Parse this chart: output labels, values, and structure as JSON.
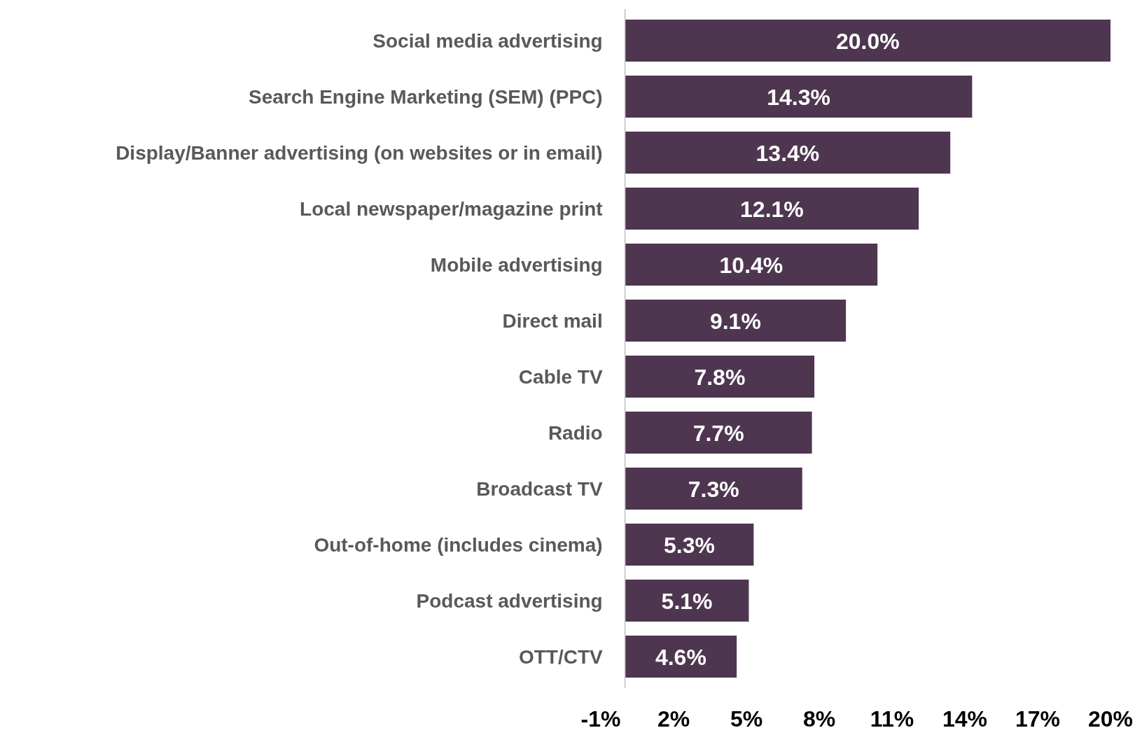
{
  "chart_data": {
    "type": "bar",
    "orientation": "horizontal",
    "categories": [
      "Social media advertising",
      "Search Engine Marketing (SEM) (PPC)",
      "Display/Banner advertising (on websites or in email)",
      "Local newspaper/magazine print",
      "Mobile advertising",
      "Direct mail",
      "Cable TV",
      "Radio",
      "Broadcast TV",
      "Out-of-home (includes cinema)",
      "Podcast advertising",
      "OTT/CTV"
    ],
    "values": [
      20.0,
      14.3,
      13.4,
      12.1,
      10.4,
      9.1,
      7.8,
      7.7,
      7.3,
      5.3,
      5.1,
      4.6
    ],
    "value_labels": [
      "20.0%",
      "14.3%",
      "13.4%",
      "12.1%",
      "10.4%",
      "9.1%",
      "7.8%",
      "7.7%",
      "7.3%",
      "5.3%",
      "5.1%",
      "4.6%"
    ],
    "color": "#4e3650",
    "xlim": [
      -1,
      20
    ],
    "xticks": [
      {
        "value": -1,
        "label": "-1%"
      },
      {
        "value": 2,
        "label": "2%"
      },
      {
        "value": 5,
        "label": "5%"
      },
      {
        "value": 8,
        "label": "8%"
      },
      {
        "value": 11,
        "label": "11%"
      },
      {
        "value": 14,
        "label": "14%"
      },
      {
        "value": 17,
        "label": "17%"
      },
      {
        "value": 20,
        "label": "20%"
      }
    ],
    "tick_labels": "x"
  }
}
